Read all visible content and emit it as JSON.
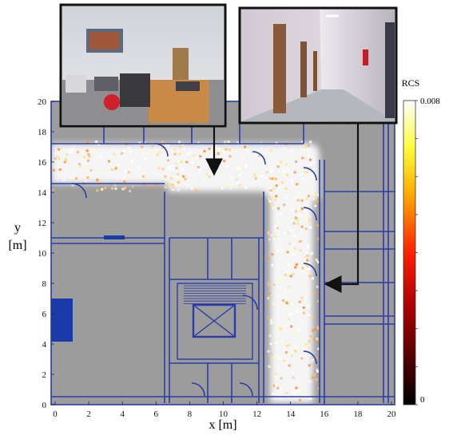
{
  "axes": {
    "xlabel": "x [m]",
    "ylabel_line1": "y",
    "ylabel_line2": "[m]",
    "xticks": [
      "0",
      "2",
      "4",
      "6",
      "8",
      "10",
      "12",
      "14",
      "16",
      "18",
      "20"
    ],
    "yticks": [
      "0",
      "2",
      "4",
      "6",
      "8",
      "10",
      "12",
      "14",
      "16",
      "18",
      "20"
    ],
    "xlim": [
      0,
      20
    ],
    "ylim": [
      0,
      20
    ]
  },
  "colorbar": {
    "label": "RCS",
    "max_label": "0.008",
    "min_label": "0",
    "range": [
      0,
      0.008
    ],
    "colormap": "black-red-yellow-white (hot)"
  },
  "photos": [
    {
      "id": "office-photo",
      "depicts": "office room with desks, printers, red chair, wooden counter"
    },
    {
      "id": "corridor-photo",
      "depicts": "long corridor with doors and fire extinguisher"
    }
  ],
  "arrows": [
    {
      "from": "office-photo",
      "to_point": [
        10,
        14.2
      ]
    },
    {
      "from": "corridor-photo",
      "to_point": [
        16.5,
        7.6
      ]
    }
  ],
  "colors": {
    "floor": "#9c9c9c",
    "walls": "#2a3da8",
    "highlight": "#ffffff",
    "frame": "#1a1a1a"
  }
}
